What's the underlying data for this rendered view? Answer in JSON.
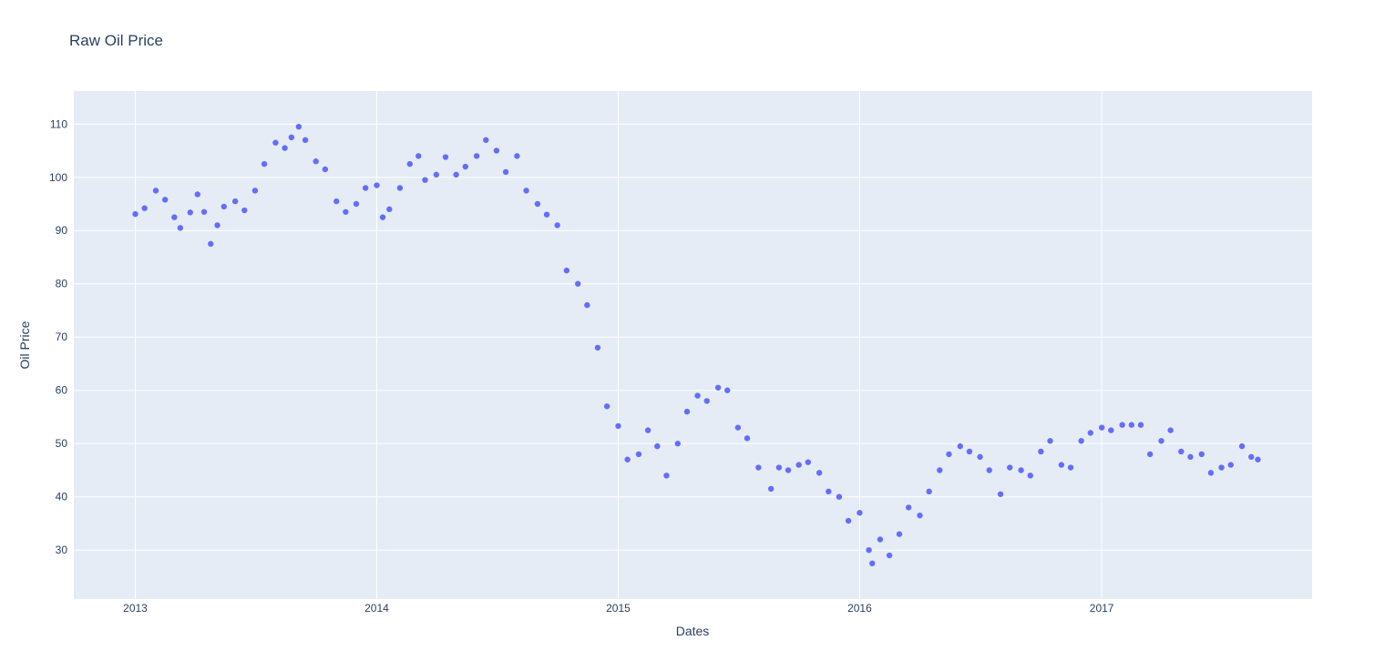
{
  "chart_data": {
    "type": "scatter",
    "title": "Raw Oil Price",
    "xlabel": "Dates",
    "ylabel": "Oil Price",
    "x_axis_type": "date",
    "xlim": [
      "2012-09-30",
      "2017-11-15"
    ],
    "ylim": [
      20.8,
      116.2
    ],
    "x_ticks": [
      "2013",
      "2014",
      "2015",
      "2016",
      "2017"
    ],
    "y_ticks": [
      30,
      40,
      50,
      60,
      70,
      80,
      90,
      100,
      110
    ],
    "grid": true,
    "marker_color": "#636efa",
    "plot_bg": "#e5ecf6",
    "grid_color": "#ffffff",
    "text_color": "#2a3f5f",
    "series": [
      {
        "points": [
          [
            "2013-01-01",
            93.1
          ],
          [
            "2013-01-15",
            94.2
          ],
          [
            "2013-02-01",
            97.5
          ],
          [
            "2013-02-15",
            95.8
          ],
          [
            "2013-03-01",
            92.5
          ],
          [
            "2013-03-10",
            90.5
          ],
          [
            "2013-03-25",
            93.4
          ],
          [
            "2013-04-05",
            96.8
          ],
          [
            "2013-04-15",
            93.5
          ],
          [
            "2013-04-25",
            87.5
          ],
          [
            "2013-05-05",
            91.0
          ],
          [
            "2013-05-15",
            94.5
          ],
          [
            "2013-06-01",
            95.5
          ],
          [
            "2013-06-15",
            93.8
          ],
          [
            "2013-07-01",
            97.5
          ],
          [
            "2013-07-15",
            102.5
          ],
          [
            "2013-08-01",
            106.5
          ],
          [
            "2013-08-15",
            105.5
          ],
          [
            "2013-08-25",
            107.5
          ],
          [
            "2013-09-05",
            109.5
          ],
          [
            "2013-09-15",
            107.0
          ],
          [
            "2013-10-01",
            103.0
          ],
          [
            "2013-10-15",
            101.5
          ],
          [
            "2013-11-01",
            95.5
          ],
          [
            "2013-11-15",
            93.5
          ],
          [
            "2013-12-01",
            95.0
          ],
          [
            "2013-12-15",
            98.0
          ],
          [
            "2014-01-01",
            98.5
          ],
          [
            "2014-01-10",
            92.5
          ],
          [
            "2014-01-20",
            94.0
          ],
          [
            "2014-02-05",
            98.0
          ],
          [
            "2014-02-20",
            102.5
          ],
          [
            "2014-03-05",
            104.0
          ],
          [
            "2014-03-15",
            99.5
          ],
          [
            "2014-04-01",
            100.5
          ],
          [
            "2014-04-15",
            103.8
          ],
          [
            "2014-05-01",
            100.5
          ],
          [
            "2014-05-15",
            102.0
          ],
          [
            "2014-06-01",
            104.0
          ],
          [
            "2014-06-15",
            107.0
          ],
          [
            "2014-07-01",
            105.0
          ],
          [
            "2014-07-15",
            101.0
          ],
          [
            "2014-08-01",
            104.0
          ],
          [
            "2014-08-15",
            97.5
          ],
          [
            "2014-09-01",
            95.0
          ],
          [
            "2014-09-15",
            93.0
          ],
          [
            "2014-10-01",
            91.0
          ],
          [
            "2014-10-15",
            82.5
          ],
          [
            "2014-11-01",
            80.0
          ],
          [
            "2014-11-15",
            76.0
          ],
          [
            "2014-12-01",
            68.0
          ],
          [
            "2014-12-15",
            57.0
          ],
          [
            "2015-01-01",
            53.3
          ],
          [
            "2015-01-15",
            47.0
          ],
          [
            "2015-02-01",
            48.0
          ],
          [
            "2015-02-15",
            52.5
          ],
          [
            "2015-03-01",
            49.5
          ],
          [
            "2015-03-15",
            44.0
          ],
          [
            "2015-04-01",
            50.0
          ],
          [
            "2015-04-15",
            56.0
          ],
          [
            "2015-05-01",
            59.0
          ],
          [
            "2015-05-15",
            58.0
          ],
          [
            "2015-06-01",
            60.5
          ],
          [
            "2015-06-15",
            60.0
          ],
          [
            "2015-07-01",
            53.0
          ],
          [
            "2015-07-15",
            51.0
          ],
          [
            "2015-08-01",
            45.5
          ],
          [
            "2015-08-20",
            41.5
          ],
          [
            "2015-09-01",
            45.5
          ],
          [
            "2015-09-15",
            45.0
          ],
          [
            "2015-10-01",
            46.0
          ],
          [
            "2015-10-15",
            46.5
          ],
          [
            "2015-11-01",
            44.5
          ],
          [
            "2015-11-15",
            41.0
          ],
          [
            "2015-12-01",
            40.0
          ],
          [
            "2015-12-15",
            35.5
          ],
          [
            "2016-01-01",
            37.0
          ],
          [
            "2016-01-15",
            30.0
          ],
          [
            "2016-01-20",
            27.5
          ],
          [
            "2016-02-01",
            32.0
          ],
          [
            "2016-02-15",
            29.0
          ],
          [
            "2016-03-01",
            33.0
          ],
          [
            "2016-03-15",
            38.0
          ],
          [
            "2016-04-01",
            36.5
          ],
          [
            "2016-04-15",
            41.0
          ],
          [
            "2016-05-01",
            45.0
          ],
          [
            "2016-05-15",
            48.0
          ],
          [
            "2016-06-01",
            49.5
          ],
          [
            "2016-06-15",
            48.5
          ],
          [
            "2016-07-01",
            47.5
          ],
          [
            "2016-07-15",
            45.0
          ],
          [
            "2016-08-01",
            40.5
          ],
          [
            "2016-08-15",
            45.5
          ],
          [
            "2016-09-01",
            45.0
          ],
          [
            "2016-09-15",
            44.0
          ],
          [
            "2016-10-01",
            48.5
          ],
          [
            "2016-10-15",
            50.5
          ],
          [
            "2016-11-01",
            46.0
          ],
          [
            "2016-11-15",
            45.5
          ],
          [
            "2016-12-01",
            50.5
          ],
          [
            "2016-12-15",
            52.0
          ],
          [
            "2017-01-01",
            53.0
          ],
          [
            "2017-01-15",
            52.5
          ],
          [
            "2017-02-01",
            53.5
          ],
          [
            "2017-02-15",
            53.5
          ],
          [
            "2017-03-01",
            53.5
          ],
          [
            "2017-03-15",
            48.0
          ],
          [
            "2017-04-01",
            50.5
          ],
          [
            "2017-04-15",
            52.5
          ],
          [
            "2017-05-01",
            48.5
          ],
          [
            "2017-05-15",
            47.5
          ],
          [
            "2017-06-01",
            48.0
          ],
          [
            "2017-06-15",
            44.5
          ],
          [
            "2017-07-01",
            45.5
          ],
          [
            "2017-07-15",
            46.0
          ],
          [
            "2017-08-01",
            49.5
          ],
          [
            "2017-08-15",
            47.5
          ],
          [
            "2017-08-25",
            47.0
          ]
        ]
      }
    ]
  }
}
